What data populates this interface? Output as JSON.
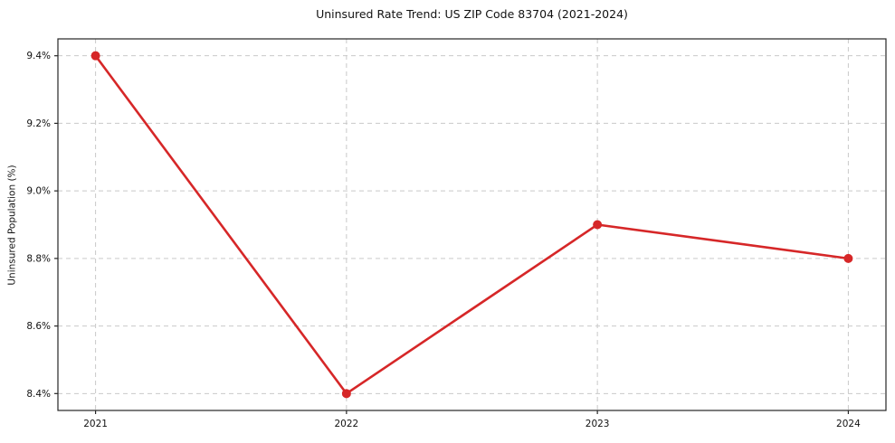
{
  "chart_data": {
    "type": "line",
    "title": "Uninsured Rate Trend: US ZIP Code 83704 (2021-2024)",
    "xlabel": "",
    "ylabel": "Uninsured Population (%)",
    "x": [
      2021,
      2022,
      2023,
      2024
    ],
    "values": [
      9.4,
      8.4,
      8.9,
      8.8
    ],
    "x_tick_labels": [
      "2021",
      "2022",
      "2023",
      "2024"
    ],
    "y_ticks": [
      8.4,
      8.6,
      8.8,
      9.0,
      9.2,
      9.4
    ],
    "y_tick_labels": [
      "8.4%",
      "8.6%",
      "8.8%",
      "9.0%",
      "9.2%",
      "9.4%"
    ],
    "xlim": [
      2020.85,
      2024.15
    ],
    "ylim": [
      8.35,
      9.45
    ],
    "grid": true,
    "grid_style": "dashed",
    "legend": "none",
    "style": {
      "line_color": "#d62728",
      "marker": "circle",
      "marker_radius": 5,
      "line_width": 2.6,
      "grid_color": "#c9c9c9",
      "spine_color": "#262626",
      "tick_color": "#262626",
      "text_color": "#111111",
      "background": "#ffffff"
    }
  }
}
